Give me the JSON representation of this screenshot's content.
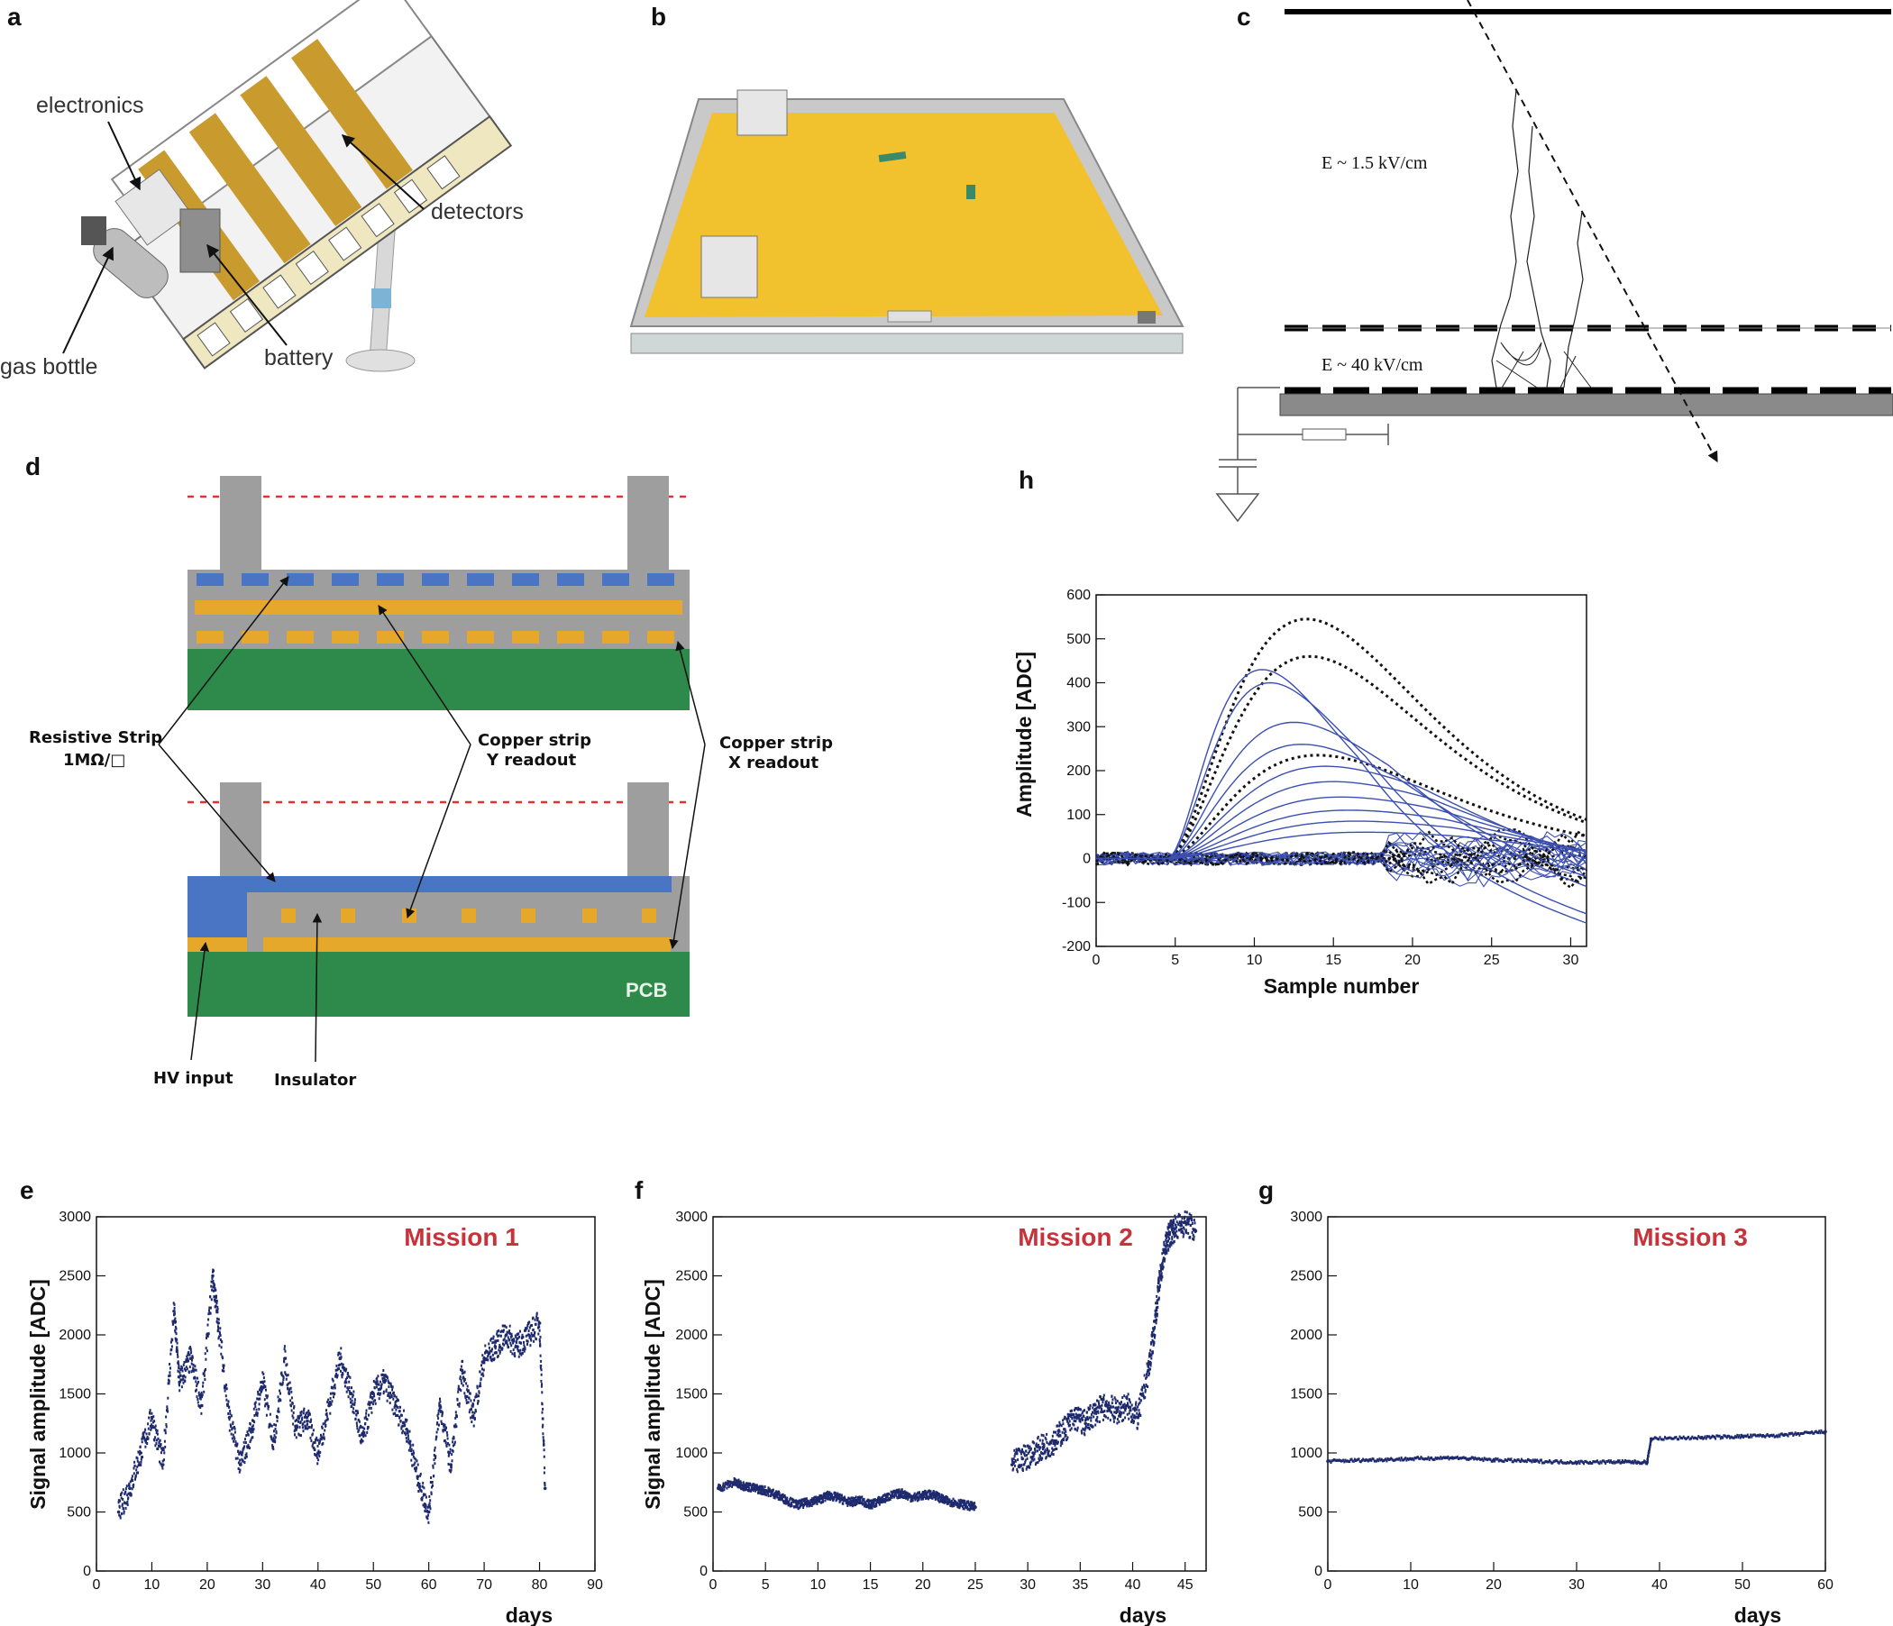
{
  "panel_labels": {
    "a": "a",
    "b": "b",
    "c": "c",
    "d": "d",
    "e": "e",
    "f": "f",
    "g": "g",
    "h": "h"
  },
  "panel_a": {
    "electronics": "electronics",
    "detectors": "detectors",
    "gas_bottle": "gas bottle",
    "battery": "battery"
  },
  "panel_c": {
    "drift_field": "E ~ 1.5 kV/cm",
    "amp_field": "E ~ 40 kV/cm"
  },
  "panel_d": {
    "resistive_strip_1": "Resistive Strip",
    "resistive_strip_2": "1MΩ/□",
    "copper_y_1": "Copper strip",
    "copper_y_2": "Y readout",
    "copper_x_1": "Copper strip",
    "copper_x_2": "X readout",
    "pcb": "PCB",
    "hv_input": "HV input",
    "insulator": "Insulator"
  },
  "colors": {
    "blue_trace": "#3b4fb0",
    "dark_point": "#1e2a6e",
    "mission": "#c8323a",
    "yellow": "#f2c12e",
    "green": "#2e8a4a",
    "gray": "#9e9e9e",
    "blue_strip": "#4a74c4",
    "copper": "#e6a82a"
  },
  "chart_data": [
    {
      "id": "h",
      "type": "line",
      "xlabel": "Sample number",
      "ylabel": "Amplitude [ADC]",
      "xlim": [
        0,
        31
      ],
      "ylim": [
        -200,
        600
      ],
      "xticks": [
        0,
        5,
        10,
        15,
        20,
        25,
        30
      ],
      "yticks": [
        -200,
        -100,
        0,
        100,
        200,
        300,
        400,
        500,
        600
      ],
      "series": [
        {
          "style": "dotted",
          "peak_x": 13.3,
          "peak_y": 545
        },
        {
          "style": "dotted",
          "peak_x": 13.5,
          "peak_y": 460
        },
        {
          "style": "dotted",
          "peak_x": 14.0,
          "peak_y": 235
        },
        {
          "style": "solid",
          "peak_x": 10.5,
          "peak_y": 430
        },
        {
          "style": "solid",
          "peak_x": 11.0,
          "peak_y": 400
        },
        {
          "style": "solid",
          "peak_x": 12.5,
          "peak_y": 310
        },
        {
          "style": "solid",
          "peak_x": 13.0,
          "peak_y": 260
        },
        {
          "style": "solid",
          "peak_x": 14.5,
          "peak_y": 210
        },
        {
          "style": "solid",
          "peak_x": 15.0,
          "peak_y": 175
        },
        {
          "style": "solid",
          "peak_x": 15.5,
          "peak_y": 140
        },
        {
          "style": "solid",
          "peak_x": 16.0,
          "peak_y": 110
        },
        {
          "style": "solid",
          "peak_x": 16.5,
          "peak_y": 85
        },
        {
          "style": "solid",
          "peak_x": 17.0,
          "peak_y": 60
        }
      ]
    },
    {
      "id": "e",
      "type": "scatter",
      "title": "Mission 1",
      "xlabel": "days",
      "ylabel": "Signal amplitude [ADC]",
      "xlim": [
        0,
        90
      ],
      "ylim": [
        0,
        3000
      ],
      "xticks": [
        0,
        10,
        20,
        30,
        40,
        50,
        60,
        70,
        80,
        90
      ],
      "yticks": [
        0,
        500,
        1000,
        1500,
        2000,
        2500,
        3000
      ],
      "x": [
        4,
        6,
        8,
        10,
        12,
        14,
        15,
        17,
        19,
        21,
        22,
        24,
        26,
        28,
        30,
        32,
        34,
        36,
        38,
        40,
        42,
        44,
        46,
        48,
        50,
        52,
        54,
        56,
        58,
        60,
        62,
        64,
        66,
        68,
        70,
        72,
        74,
        76,
        78,
        80,
        81
      ],
      "y": [
        500,
        700,
        1000,
        1300,
        900,
        2200,
        1600,
        1800,
        1400,
        2500,
        2100,
        1300,
        900,
        1200,
        1600,
        1100,
        1800,
        1200,
        1300,
        1000,
        1400,
        1800,
        1500,
        1100,
        1500,
        1600,
        1400,
        1200,
        800,
        500,
        1400,
        900,
        1700,
        1300,
        1800,
        1900,
        2000,
        1900,
        2000,
        2100,
        700
      ]
    },
    {
      "id": "f",
      "type": "scatter",
      "title": "Mission 2",
      "xlabel": "days",
      "ylabel": "Signal amplitude [ADC]",
      "xlim": [
        0,
        47
      ],
      "ylim": [
        0,
        3000
      ],
      "xticks": [
        0,
        5,
        10,
        15,
        20,
        25,
        30,
        35,
        40,
        45
      ],
      "yticks": [
        0,
        500,
        1000,
        1500,
        2000,
        2500,
        3000
      ],
      "x": [
        0.5,
        2,
        3,
        4,
        5,
        6,
        7,
        8,
        9,
        10,
        11,
        12,
        13,
        14,
        15,
        16,
        17,
        18,
        19,
        20,
        21,
        22,
        23,
        24,
        25,
        28.5,
        29.5,
        30.5,
        31.5,
        32.5,
        33.5,
        34.5,
        35.5,
        36.5,
        37.5,
        38.5,
        39.5,
        40.5,
        41.5,
        42,
        42.5,
        43,
        43.5,
        44,
        45,
        46
      ],
      "y": [
        700,
        750,
        720,
        700,
        680,
        650,
        600,
        560,
        580,
        600,
        640,
        620,
        580,
        600,
        560,
        600,
        640,
        660,
        620,
        640,
        650,
        600,
        580,
        560,
        540,
        900,
        950,
        1000,
        1050,
        1100,
        1200,
        1300,
        1250,
        1350,
        1400,
        1350,
        1400,
        1300,
        1700,
        2000,
        2400,
        2700,
        2850,
        2900,
        2950,
        2880
      ]
    },
    {
      "id": "g",
      "type": "scatter",
      "title": "Mission 3",
      "xlabel": "days",
      "ylabel": "",
      "xlim": [
        0,
        60
      ],
      "ylim": [
        0,
        3000
      ],
      "xticks": [
        0,
        10,
        20,
        30,
        40,
        50,
        60
      ],
      "yticks": [
        0,
        500,
        1000,
        1500,
        2000,
        2500,
        3000
      ],
      "x": [
        0,
        5,
        10,
        15,
        20,
        25,
        30,
        35,
        38.5,
        39,
        45,
        50,
        55,
        60
      ],
      "y": [
        930,
        940,
        950,
        960,
        940,
        930,
        920,
        925,
        920,
        1120,
        1130,
        1140,
        1150,
        1180
      ]
    }
  ]
}
